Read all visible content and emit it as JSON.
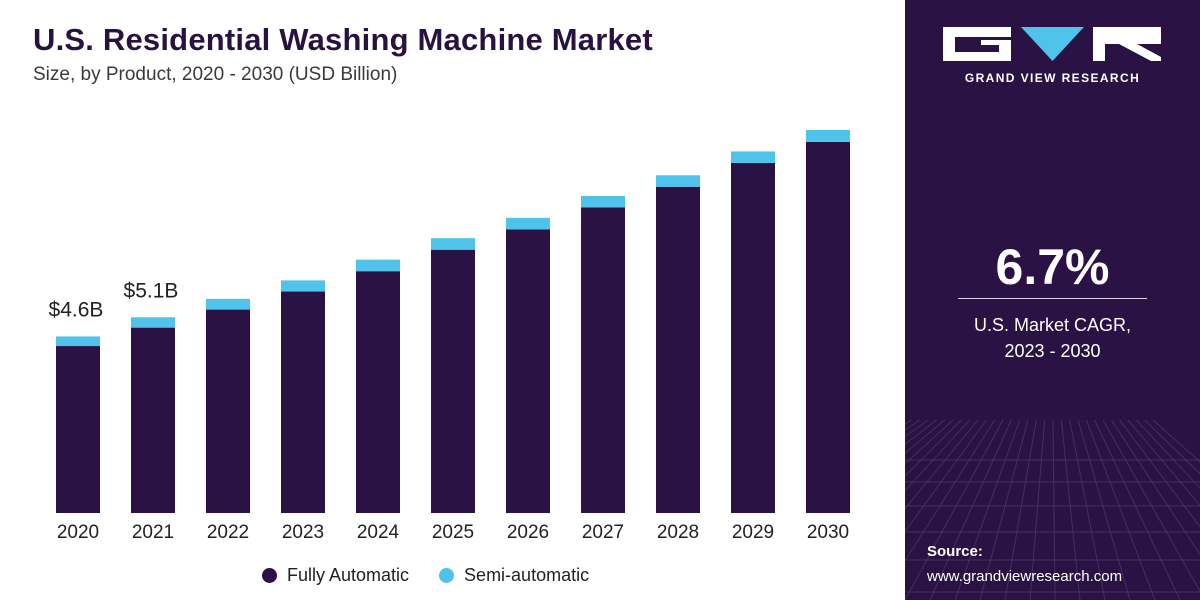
{
  "header": {
    "title": "U.S. Residential Washing Machine Market",
    "subtitle": "Size, by Product, 2020 - 2030 (USD Billion)"
  },
  "chart_data": {
    "type": "bar",
    "stacked": true,
    "categories": [
      "2020",
      "2021",
      "2022",
      "2023",
      "2024",
      "2025",
      "2026",
      "2027",
      "2028",
      "2029",
      "2030"
    ],
    "series": [
      {
        "name": "Fully Automatic",
        "color": "#2a1245",
        "values": [
          4.35,
          4.83,
          5.3,
          5.77,
          6.3,
          6.86,
          7.39,
          7.96,
          8.5,
          9.12,
          9.67
        ]
      },
      {
        "name": "Semi-automatic",
        "color": "#4fc3ea",
        "values": [
          0.25,
          0.27,
          0.28,
          0.29,
          0.3,
          0.3,
          0.3,
          0.3,
          0.3,
          0.3,
          0.31
        ]
      }
    ],
    "data_labels": [
      {
        "category": "2020",
        "text": "$4.6B"
      },
      {
        "category": "2021",
        "text": "$5.1B"
      }
    ],
    "ylim": [
      0,
      10.5
    ],
    "grid": false,
    "legend_position": "bottom"
  },
  "sidebar": {
    "brand": "GRAND VIEW RESEARCH",
    "logo_icon": "gvr-logo-icon",
    "cagr_value": "6.7%",
    "cagr_label_line1": "U.S. Market CAGR,",
    "cagr_label_line2": "2023 - 2030",
    "source_label": "Source:",
    "source_url": "www.grandviewresearch.com"
  }
}
